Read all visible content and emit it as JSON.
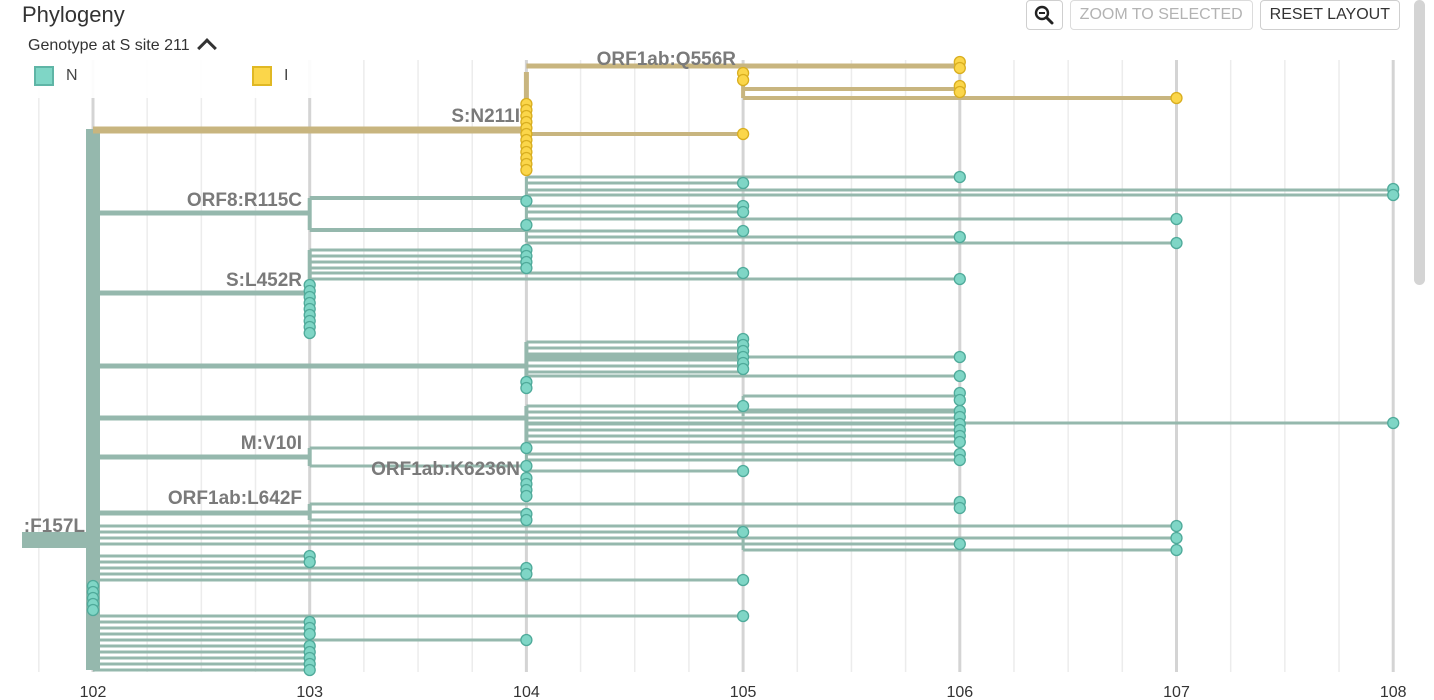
{
  "title": "Phylogeny",
  "toolbar": {
    "zoom_icon": "magnifier-minus-icon",
    "zoom_to_selected": "ZOOM TO SELECTED",
    "reset_layout": "RESET LAYOUT"
  },
  "legend": {
    "title": "Genotype at S site 211",
    "collapse_icon": "chevron-up-icon",
    "items": [
      {
        "label": "N",
        "color": "#7fd6c6",
        "border": "#5fb5a6"
      },
      {
        "label": "I",
        "color": "#fbd64a",
        "border": "#e0b824"
      }
    ]
  },
  "chart_data": {
    "type": "tree",
    "x_axis": {
      "min": 102,
      "max": 108,
      "ticks": [
        "102",
        "103",
        "104",
        "105",
        "106",
        "107",
        "108"
      ]
    },
    "colors": {
      "N": "#95b8ad",
      "I": "#c8b57f",
      "tip_N": "#7fd6c6",
      "tip_I": "#fbd64a"
    },
    "mutation_labels": [
      "ORF1ab:Q556R",
      "S:N211I",
      "ORF8:R115C",
      "S:L452R",
      "M:V10I",
      "ORF1ab:K6236N",
      "ORF1ab:L642F",
      ":F157L"
    ]
  }
}
